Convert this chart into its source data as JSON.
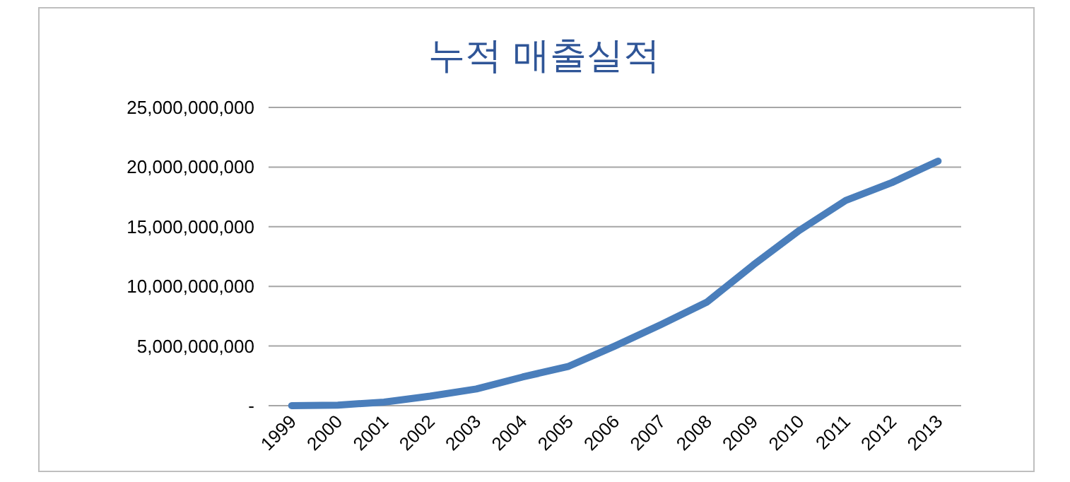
{
  "chart_data": {
    "type": "line",
    "title": "누적 매출실적",
    "categories": [
      "1999",
      "2000",
      "2001",
      "2002",
      "2003",
      "2004",
      "2005",
      "2006",
      "2007",
      "2008",
      "2009",
      "2010",
      "2011",
      "2012",
      "2013"
    ],
    "values": [
      0,
      50000000,
      300000000,
      800000000,
      1400000000,
      2400000000,
      3300000000,
      5000000000,
      6800000000,
      8700000000,
      11800000000,
      14700000000,
      17200000000,
      18700000000,
      20500000000
    ],
    "color": "#4a7ebb",
    "ylim": [
      0,
      25000000000
    ],
    "yticks": [
      {
        "value": 0,
        "label": "-"
      },
      {
        "value": 5000000000,
        "label": "5,000,000,000"
      },
      {
        "value": 10000000000,
        "label": "10,000,000,000"
      },
      {
        "value": 15000000000,
        "label": "15,000,000,000"
      },
      {
        "value": 20000000000,
        "label": "20,000,000,000"
      },
      {
        "value": 25000000000,
        "label": "25,000,000,000"
      }
    ],
    "grid": "y"
  }
}
